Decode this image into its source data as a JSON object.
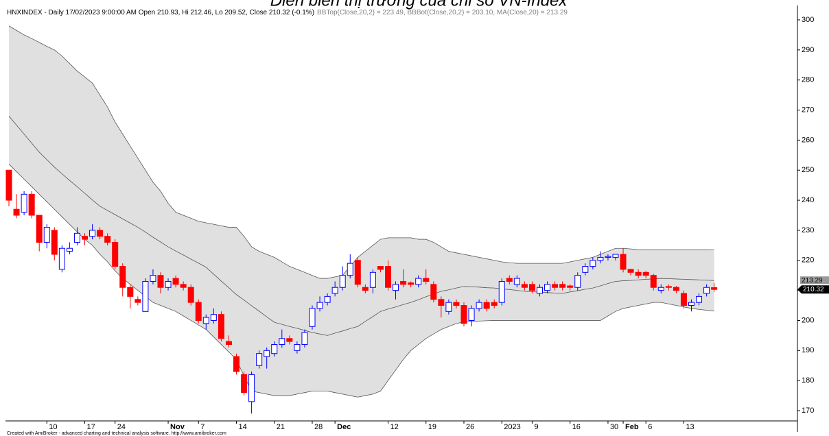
{
  "chart_data": {
    "type": "candlestick",
    "title": "Diễn biến thị trường của chỉ số VN-Index",
    "header_main": "HNXINDEX - Daily 17/02/2023 9:00:00 AM Open 210.93, Hi 212.46, Lo 209.52, Close 210.32 (-0.1%)",
    "header_indicators": "BBTop(Close,20,2) = 223.49, BBBot(Close,20,2) = 203.10, MA(Close,20) = 213.29",
    "footer": "Created with AmiBroker - advanced charting and technical analysis software. http://www.amibroker.com",
    "categories": [
      null,
      null,
      null,
      null,
      null,
      "10",
      null,
      null,
      null,
      null,
      "17",
      null,
      null,
      null,
      "24",
      null,
      null,
      null,
      null,
      null,
      null,
      "Nov",
      null,
      null,
      null,
      "7",
      null,
      null,
      null,
      null,
      "14",
      null,
      null,
      null,
      null,
      "21",
      null,
      null,
      null,
      null,
      "28",
      null,
      null,
      "Dec",
      null,
      null,
      null,
      null,
      null,
      null,
      "12",
      null,
      null,
      null,
      null,
      "19",
      null,
      null,
      null,
      null,
      "26",
      null,
      null,
      null,
      null,
      "2023",
      null,
      null,
      null,
      "9",
      null,
      null,
      null,
      null,
      "16",
      null,
      null,
      null,
      null,
      "30",
      null,
      "Feb",
      null,
      null,
      "6",
      null,
      null,
      null,
      null,
      "13",
      null,
      null,
      null,
      null
    ],
    "open": [
      250,
      237,
      236,
      242,
      235,
      226,
      230,
      217,
      223,
      226,
      228,
      228,
      230,
      228,
      226,
      218,
      211,
      207,
      203,
      213,
      215,
      211,
      214,
      212,
      211,
      206,
      199,
      200,
      202,
      193,
      188,
      182,
      173,
      185,
      188,
      189,
      192,
      194,
      190,
      192,
      198,
      204,
      206,
      209,
      211,
      215,
      220,
      211,
      211,
      218,
      218,
      210,
      213,
      212.5,
      212,
      214,
      212,
      207,
      203,
      206,
      205,
      200,
      204,
      206,
      206,
      206,
      214,
      212,
      212,
      212,
      209,
      210,
      212,
      212,
      211.5,
      211,
      216,
      218,
      220,
      221,
      221,
      222,
      217,
      216,
      216,
      215,
      210,
      211.3,
      211,
      209,
      205,
      206,
      209,
      210.93
    ],
    "high": [
      250,
      242,
      243,
      243,
      235,
      232,
      231,
      225,
      226,
      231,
      229,
      232,
      231,
      229,
      227,
      219,
      212,
      208,
      214,
      217,
      216,
      214,
      215,
      213,
      212,
      207,
      202,
      204,
      203,
      195,
      189,
      183,
      183,
      190,
      191,
      193,
      197,
      195,
      193,
      197,
      205,
      208,
      209,
      213,
      218,
      222,
      221,
      212,
      217,
      218,
      220,
      213,
      217,
      213,
      215,
      217,
      213,
      208,
      207,
      207,
      206,
      205,
      207,
      207,
      207,
      214,
      215,
      215,
      213,
      213,
      212,
      213,
      213,
      213,
      212,
      216,
      219,
      221,
      223,
      222,
      222,
      224,
      217,
      217,
      216.5,
      215.5,
      212,
      212,
      211.5,
      210,
      207,
      209,
      212,
      212.46
    ],
    "low": [
      238,
      234,
      235,
      234,
      223,
      224,
      220,
      216,
      222,
      225,
      225,
      227,
      227,
      225,
      217,
      208,
      204,
      205,
      203,
      212,
      209,
      210,
      211,
      210,
      205,
      199,
      197,
      199,
      193,
      191,
      182,
      175,
      169,
      184,
      184,
      188,
      191,
      192,
      189,
      191,
      197,
      203,
      205,
      208,
      210,
      214,
      211,
      209,
      209,
      216,
      210,
      207,
      211,
      211,
      211,
      212,
      206,
      201,
      202,
      204,
      198,
      198,
      203,
      203,
      204,
      205,
      212,
      211,
      210,
      209,
      208,
      209,
      210,
      210,
      210,
      210,
      215,
      217,
      219,
      220,
      220,
      216,
      215,
      214,
      214,
      210,
      209,
      210,
      209,
      204,
      203,
      205,
      208,
      209.52
    ],
    "close": [
      240,
      235,
      242,
      235,
      226,
      231,
      222,
      224,
      224,
      229,
      227,
      230,
      228,
      226,
      218,
      211,
      208,
      206,
      213,
      215,
      211,
      213,
      212,
      211,
      206,
      200,
      201,
      202,
      194,
      192,
      183,
      176,
      182,
      189,
      190,
      192,
      194,
      193,
      192,
      196,
      204,
      206,
      208,
      211,
      215,
      219,
      212,
      210,
      216,
      217,
      211,
      212,
      212,
      212,
      214,
      213,
      207,
      205,
      206,
      205,
      199,
      204,
      206,
      204,
      205,
      213,
      213,
      214,
      211,
      210,
      211,
      212,
      211,
      211,
      211,
      215,
      218,
      220,
      221,
      221.3,
      222,
      217,
      216,
      215,
      215,
      211,
      211,
      211,
      210,
      205,
      206,
      208,
      211,
      210.32
    ],
    "bb_top": [
      298,
      296.5,
      295,
      293.8,
      292.5,
      291.2,
      290,
      288,
      285.5,
      283,
      281,
      279,
      275,
      271,
      266,
      262,
      258,
      254,
      250,
      246,
      243,
      239,
      236,
      235,
      234,
      233,
      232.5,
      232,
      231.5,
      231,
      231,
      228,
      224.5,
      223,
      222,
      221,
      219.5,
      218,
      217,
      216,
      215,
      214,
      214,
      214.5,
      215,
      218,
      221,
      223,
      225,
      227,
      227.5,
      227.5,
      227.5,
      227.5,
      227,
      227,
      226,
      224.5,
      223,
      222.5,
      222,
      221.5,
      221,
      220.5,
      220,
      219.5,
      219.2,
      219,
      219,
      219,
      219,
      219,
      219,
      219,
      219.5,
      220,
      220.5,
      221,
      222,
      223,
      224,
      224,
      223.8,
      223.6,
      223.5,
      223.5,
      223.5,
      223.5,
      223.5,
      223.5,
      223.5,
      223.5,
      223.5,
      223.49
    ],
    "bb_bottom": [
      252,
      249.5,
      247,
      244.5,
      242,
      239.5,
      237,
      234.5,
      232,
      229.5,
      227,
      225,
      222,
      219.5,
      216.5,
      214,
      212,
      210,
      208,
      206,
      205,
      204,
      203,
      201.5,
      200,
      198.5,
      197,
      194.5,
      192,
      189.5,
      187,
      181.5,
      176.5,
      176,
      175.5,
      175,
      175,
      175,
      175.5,
      176,
      176.5,
      176.5,
      176.5,
      176,
      175.5,
      175,
      174.5,
      175,
      175.5,
      176.5,
      180,
      183.5,
      187,
      190,
      192,
      194,
      195.5,
      197,
      198,
      199,
      199.5,
      199.7,
      199.8,
      199.9,
      200,
      200,
      200,
      200,
      200,
      200,
      200,
      200,
      200,
      200,
      200,
      200,
      200,
      200,
      200,
      201.5,
      203,
      204,
      204.5,
      205,
      205.5,
      206,
      206,
      205.5,
      205,
      204.5,
      204,
      203.7,
      203.4,
      203.1
    ],
    "ma": [
      268,
      265,
      262,
      259,
      256,
      253.5,
      251,
      248.8,
      246.6,
      244.5,
      242.3,
      240.1,
      238,
      236.6,
      235.2,
      233.8,
      232.4,
      231,
      229.4,
      227.7,
      226.1,
      224.5,
      223.1,
      221.8,
      220.4,
      219.1,
      217.7,
      215.4,
      213.1,
      210.9,
      208.6,
      206.8,
      204.9,
      203.1,
      201.2,
      199.4,
      198.7,
      198,
      197.4,
      196.7,
      196,
      195.5,
      195,
      195.8,
      196.5,
      197.3,
      198,
      199.7,
      201.3,
      203,
      203.8,
      204.5,
      205.3,
      206,
      206.9,
      207.9,
      208.8,
      209.7,
      210.2,
      210.8,
      211.3,
      211.2,
      211.1,
      210.9,
      210.8,
      210.5,
      210.3,
      210,
      209.7,
      209.6,
      209.4,
      209.3,
      209.1,
      209,
      209.5,
      209.9,
      210.4,
      210.8,
      211.5,
      212.3,
      213,
      213.2,
      213.3,
      213.5,
      213.7,
      213.8,
      214,
      213.9,
      213.8,
      213.7,
      213.6,
      213.5,
      213.4,
      213.29
    ],
    "up_color": "#0000ff",
    "down_color": "#ff0000",
    "band_color": "#e0e0e0",
    "ylim": [
      170,
      300
    ],
    "yticks": [
      170,
      180,
      190,
      200,
      210,
      220,
      230,
      240,
      250,
      260,
      270,
      280,
      290,
      300
    ]
  }
}
